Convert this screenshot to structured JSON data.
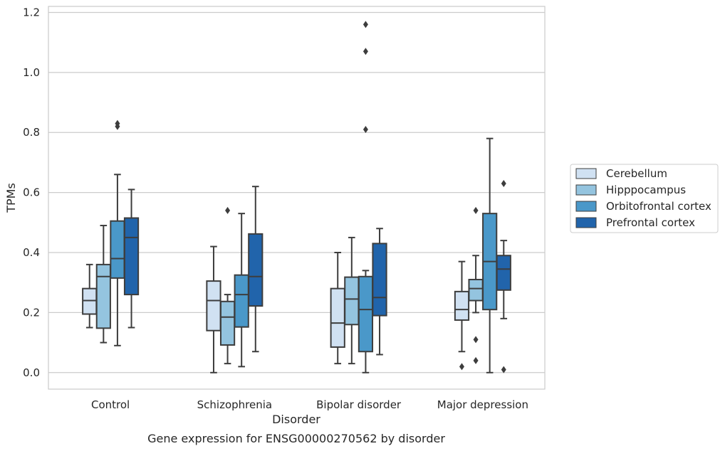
{
  "chart_data": {
    "type": "box",
    "title": "",
    "caption": "Gene expression for ENSG00000270562 by disorder",
    "xlabel": "Disorder",
    "ylabel": "TPMs",
    "ylim": [
      -0.055,
      1.22
    ],
    "yticks": [
      0.0,
      0.2,
      0.4,
      0.6,
      0.8,
      1.0,
      1.2
    ],
    "ytick_labels": [
      "0.0",
      "0.2",
      "0.4",
      "0.6",
      "0.8",
      "1.0",
      "1.2"
    ],
    "grid": "horizontal",
    "legend_position": "right",
    "categories": [
      "Control",
      "Schizophrenia",
      "Bipolar disorder",
      "Major depression"
    ],
    "series": [
      {
        "name": "Cerebellum",
        "color": "#d0e1f2",
        "boxes": [
          {
            "whislo": 0.15,
            "q1": 0.195,
            "med": 0.24,
            "q3": 0.28,
            "whishi": 0.36,
            "fliers": []
          },
          {
            "whislo": 0.0,
            "q1": 0.14,
            "med": 0.24,
            "q3": 0.305,
            "whishi": 0.42,
            "fliers": []
          },
          {
            "whislo": 0.03,
            "q1": 0.085,
            "med": 0.165,
            "q3": 0.28,
            "whishi": 0.4,
            "fliers": []
          },
          {
            "whislo": 0.07,
            "q1": 0.175,
            "med": 0.21,
            "q3": 0.27,
            "whishi": 0.37,
            "fliers": [
              0.02
            ]
          }
        ]
      },
      {
        "name": "Hipppocampus",
        "color": "#94c4df",
        "boxes": [
          {
            "whislo": 0.1,
            "q1": 0.148,
            "med": 0.32,
            "q3": 0.36,
            "whishi": 0.49,
            "fliers": []
          },
          {
            "whislo": 0.03,
            "q1": 0.092,
            "med": 0.185,
            "q3": 0.237,
            "whishi": 0.26,
            "fliers": [
              0.54
            ]
          },
          {
            "whislo": 0.03,
            "q1": 0.16,
            "med": 0.245,
            "q3": 0.318,
            "whishi": 0.45,
            "fliers": []
          },
          {
            "whislo": 0.2,
            "q1": 0.24,
            "med": 0.28,
            "q3": 0.31,
            "whishi": 0.39,
            "fliers": [
              0.54,
              0.11,
              0.04
            ]
          }
        ]
      },
      {
        "name": "Orbitofrontal cortex",
        "color": "#4a98c9",
        "boxes": [
          {
            "whislo": 0.09,
            "q1": 0.315,
            "med": 0.38,
            "q3": 0.505,
            "whishi": 0.66,
            "fliers": [
              0.83,
              0.82
            ]
          },
          {
            "whislo": 0.02,
            "q1": 0.152,
            "med": 0.26,
            "q3": 0.325,
            "whishi": 0.53,
            "fliers": []
          },
          {
            "whislo": 0.0,
            "q1": 0.07,
            "med": 0.21,
            "q3": 0.32,
            "whishi": 0.34,
            "fliers": [
              1.16,
              1.07,
              0.81
            ]
          },
          {
            "whislo": 0.0,
            "q1": 0.21,
            "med": 0.37,
            "q3": 0.53,
            "whishi": 0.78,
            "fliers": []
          }
        ]
      },
      {
        "name": "Prefrontal cortex",
        "color": "#2164ab",
        "boxes": [
          {
            "whislo": 0.15,
            "q1": 0.26,
            "med": 0.45,
            "q3": 0.515,
            "whishi": 0.61,
            "fliers": []
          },
          {
            "whislo": 0.07,
            "q1": 0.222,
            "med": 0.32,
            "q3": 0.462,
            "whishi": 0.62,
            "fliers": []
          },
          {
            "whislo": 0.06,
            "q1": 0.19,
            "med": 0.25,
            "q3": 0.43,
            "whishi": 0.48,
            "fliers": []
          },
          {
            "whislo": 0.18,
            "q1": 0.275,
            "med": 0.345,
            "q3": 0.39,
            "whishi": 0.44,
            "fliers": [
              0.63,
              0.01
            ]
          }
        ]
      }
    ]
  }
}
